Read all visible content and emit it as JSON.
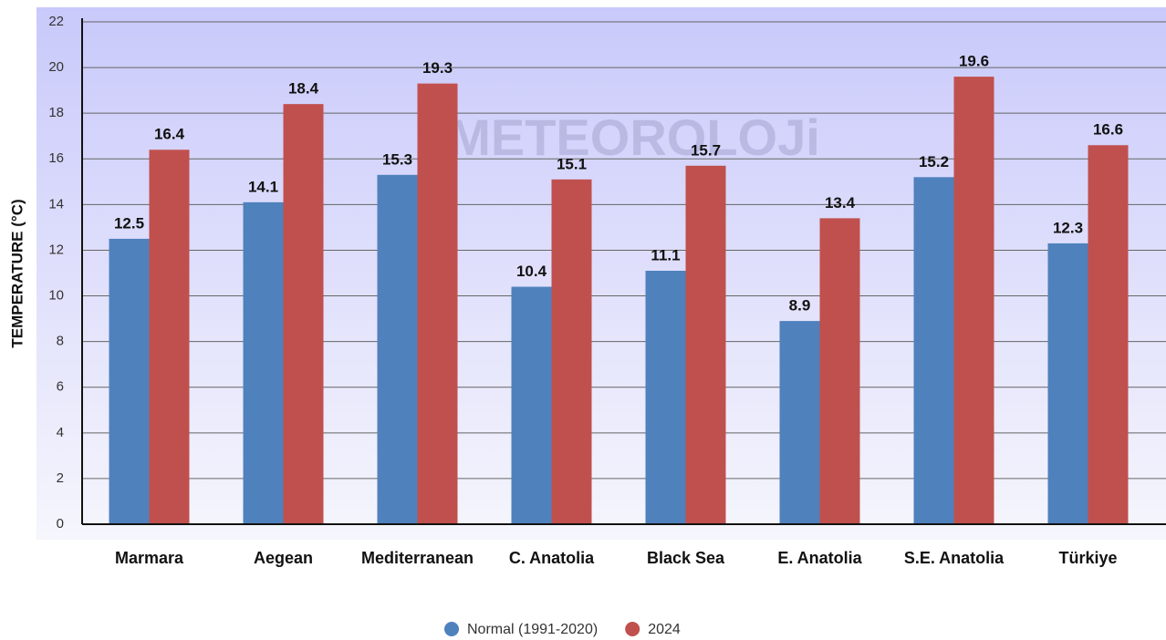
{
  "chart_data": {
    "type": "bar",
    "watermark": "METEOROLOJi",
    "y_label": "TEMPERATURE (°C)",
    "categories": [
      "Marmara",
      "Aegean",
      "Mediterranean",
      "C. Anatolia",
      "Black Sea",
      "E. Anatolia",
      "S.E. Anatolia",
      "Türkiye"
    ],
    "series": [
      {
        "name": "Normal (1991-2020)",
        "color": "#4f81bd",
        "values": [
          12.5,
          14.1,
          15.3,
          10.4,
          11.1,
          8.9,
          15.2,
          12.3
        ]
      },
      {
        "name": "2024",
        "color": "#c0504d",
        "values": [
          16.4,
          18.4,
          19.3,
          15.1,
          15.7,
          13.4,
          19.6,
          16.6
        ]
      }
    ],
    "ylim": [
      0,
      22
    ],
    "yticks": [
      0,
      2,
      4,
      6,
      8,
      10,
      12,
      14,
      16,
      18,
      20,
      22
    ],
    "grid": true,
    "legend": "bottom"
  }
}
